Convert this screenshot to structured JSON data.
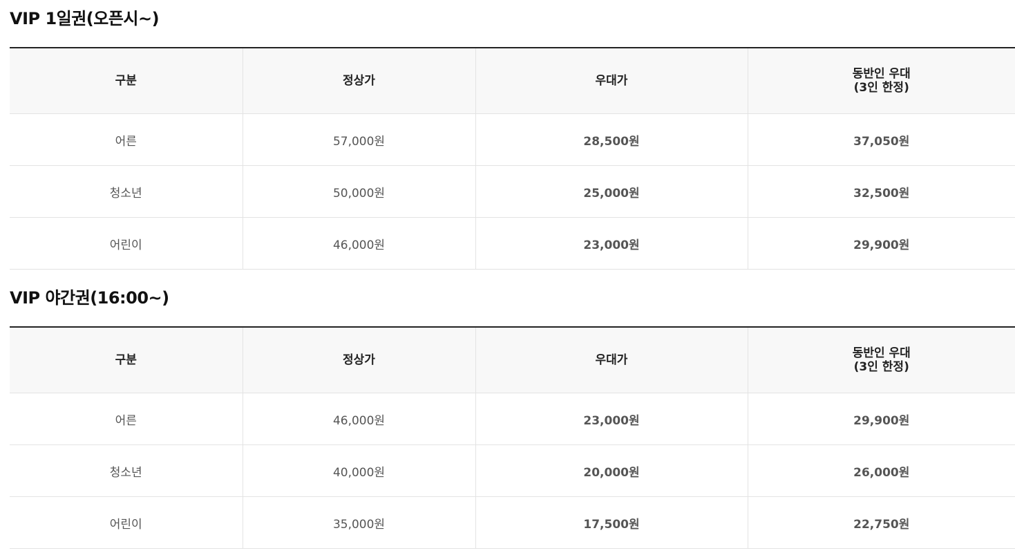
{
  "sections": [
    {
      "title": "VIP 1일권(오픈시~)",
      "headers": {
        "category": "구분",
        "regular": "정상가",
        "discount": "우대가",
        "companion_line1": "동반인 우대",
        "companion_line2": "(3인 한정)"
      },
      "rows": [
        {
          "category": "어른",
          "regular": "57,000원",
          "discount": "28,500원",
          "companion": "37,050원"
        },
        {
          "category": "청소년",
          "regular": "50,000원",
          "discount": "25,000원",
          "companion": "32,500원"
        },
        {
          "category": "어린이",
          "regular": "46,000원",
          "discount": "23,000원",
          "companion": "29,900원"
        }
      ]
    },
    {
      "title": "VIP 야간권(16:00~)",
      "headers": {
        "category": "구분",
        "regular": "정상가",
        "discount": "우대가",
        "companion_line1": "동반인 우대",
        "companion_line2": "(3인 한정)"
      },
      "rows": [
        {
          "category": "어른",
          "regular": "46,000원",
          "discount": "23,000원",
          "companion": "29,900원"
        },
        {
          "category": "청소년",
          "regular": "40,000원",
          "discount": "20,000원",
          "companion": "26,000원"
        },
        {
          "category": "어린이",
          "regular": "35,000원",
          "discount": "17,500원",
          "companion": "22,750원"
        }
      ]
    }
  ],
  "colors": {
    "discount_text": "#5a10d8",
    "header_bg": "#f8f8f8",
    "table_top_border": "#222222"
  }
}
